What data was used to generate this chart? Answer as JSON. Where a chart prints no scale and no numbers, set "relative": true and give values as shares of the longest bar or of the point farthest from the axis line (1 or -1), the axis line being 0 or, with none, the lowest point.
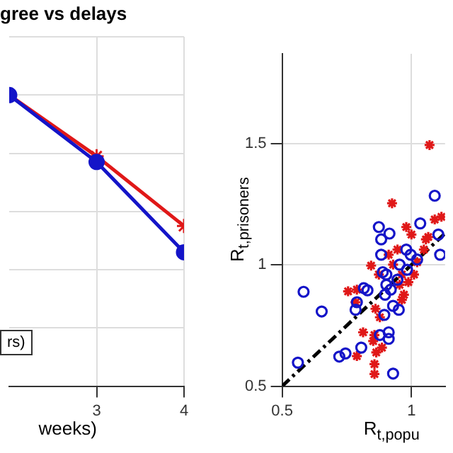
{
  "chart_data": [
    {
      "type": "line",
      "title": "gree vs delays",
      "xlabel": "weeks)",
      "relative": true,
      "x": [
        2,
        3,
        4
      ],
      "xlim": [
        2,
        4
      ],
      "xticks": [
        3,
        4
      ],
      "grid": true,
      "line_style": "solid",
      "annotations": [
        "rs)"
      ],
      "series": [
        {
          "color": "#1414c8",
          "marker": "circle",
          "values": [
            1,
            0.77,
            0.46
          ]
        },
        {
          "color": "#e01818",
          "marker": "cross",
          "values": [
            1,
            0.79,
            0.55
          ]
        }
      ]
    },
    {
      "type": "scatter",
      "xlabel": "R$_{t,popu}$",
      "ylabel": "R$_{t,prisoners}$",
      "xlim": [
        0.5,
        1.13
      ],
      "xticks": [
        0.5,
        1
      ],
      "ylim": [
        0.5,
        1.87
      ],
      "yticks": [
        0.5,
        1,
        1.5
      ],
      "grid": true,
      "series": [
        {
          "color": "#1414c8",
          "marker": "circle",
          "x": [
            0.583,
            0.653,
            0.561,
            0.721,
            0.745,
            0.806,
            0.784,
            0.789,
            0.816,
            0.83,
            0.874,
            0.883,
            0.915,
            0.883,
            0.889,
            0.903,
            0.895,
            0.878,
            0.912,
            0.912,
            0.929,
            0.898,
            0.92,
            0.929,
            0.951,
            0.946,
            0.98,
            0.997,
            1.034,
            1.022,
            1.09,
            1.104,
            1.111,
            0.983,
            0.954,
            0.903
          ],
          "values": [
            0.889,
            0.808,
            0.597,
            0.622,
            0.635,
            0.659,
            0.815,
            0.846,
            0.904,
            0.895,
            1.156,
            1.105,
            1.129,
            1.042,
            0.97,
            0.96,
            0.794,
            0.711,
            0.722,
            0.695,
            0.552,
            0.877,
            0.898,
            0.831,
            0.815,
            0.939,
            1.063,
            1.042,
            1.171,
            1.022,
            1.285,
            1.125,
            1.042,
            0.98,
            1.001,
            0.918
          ]
        },
        {
          "color": "#e01818",
          "marker": "cross",
          "x": [
            1.07,
            0.925,
            0.755,
            0.789,
            0.784,
            0.844,
            0.874,
            0.861,
            0.878,
            0.813,
            0.857,
            0.852,
            0.789,
            0.864,
            0.857,
            0.857,
            0.886,
            0.912,
            0.946,
            0.98,
            1.0,
            0.954,
            0.971,
            0.963,
            0.988,
            1.01,
            1.022,
            1.048,
            1.056,
            1.09,
            1.116,
            1.065,
            0.963,
            0.929
          ],
          "values": [
            1.494,
            1.254,
            0.891,
            0.898,
            0.846,
            0.997,
            0.96,
            0.819,
            0.784,
            0.722,
            0.711,
            0.686,
            0.624,
            0.639,
            0.591,
            0.55,
            0.659,
            1.042,
            1.063,
            1.156,
            1.125,
            0.918,
            0.877,
            0.856,
            0.929,
            0.96,
            1.011,
            1.063,
            1.105,
            1.187,
            1.198,
            1.115,
            0.96,
            1.001
          ]
        },
        {
          "type": "line",
          "color": "#000000",
          "line_style": "dashdot",
          "marker": "none",
          "x": [
            0.5,
            1.13
          ],
          "values": [
            0.5,
            1.13
          ]
        }
      ]
    }
  ]
}
